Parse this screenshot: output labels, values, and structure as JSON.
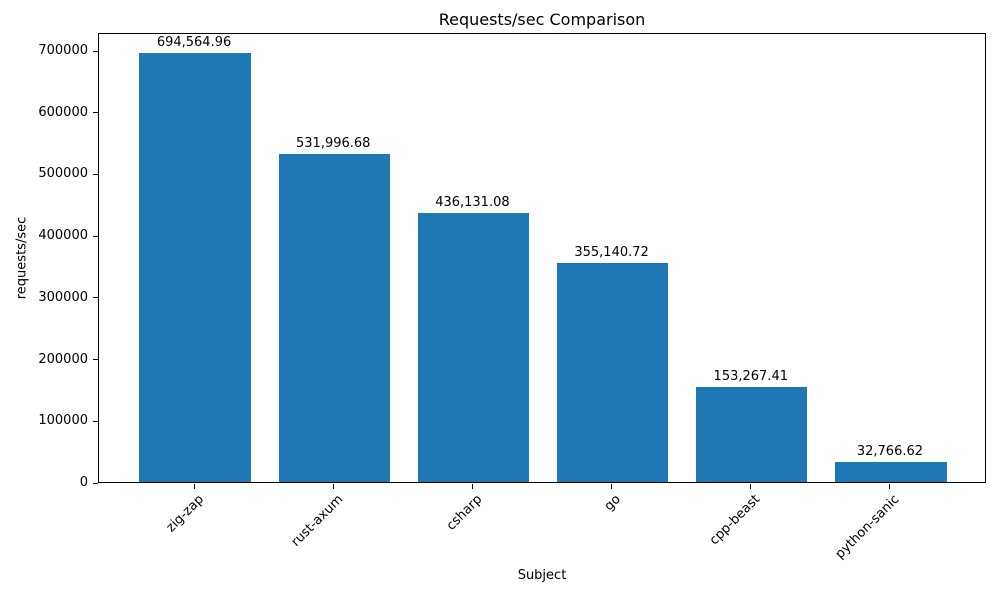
{
  "chart_data": {
    "type": "bar",
    "title": "Requests/sec Comparison",
    "xlabel": "Subject",
    "ylabel": "requests/sec",
    "categories": [
      "zig-zap",
      "rust-axum",
      "csharp",
      "go",
      "cpp-beast",
      "python-sanic"
    ],
    "values": [
      694564.96,
      531996.68,
      436131.08,
      355140.72,
      153267.41,
      32766.62
    ],
    "bar_value_labels": [
      "694,564.96",
      "531,996.68",
      "436,131.08",
      "355,140.72",
      "153,267.41",
      "32,766.62"
    ],
    "y_ticks": [
      0,
      100000,
      200000,
      300000,
      400000,
      500000,
      600000,
      700000
    ],
    "y_tick_labels": [
      "0",
      "100000",
      "200000",
      "300000",
      "400000",
      "500000",
      "600000",
      "700000"
    ],
    "ylim": [
      0,
      729293
    ],
    "xlim": [
      -0.69,
      5.69
    ],
    "bar_width_units": 0.8,
    "x_tick_rotation_deg": 45,
    "grid": false,
    "legend": null,
    "bar_color": "#1f77b4",
    "axis_color": "#000000",
    "text_color": "#000000",
    "background_color": "#ffffff"
  }
}
